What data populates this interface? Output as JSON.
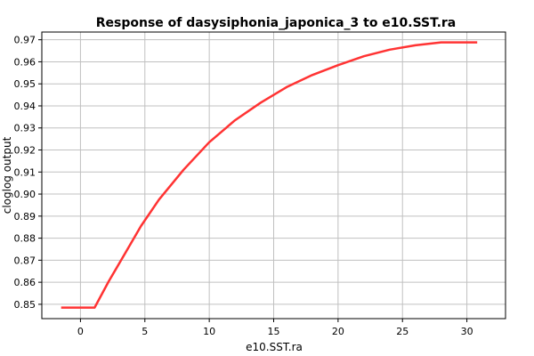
{
  "chart_data": {
    "type": "line",
    "title": "Response of dasysiphonia_japonica_3 to e10.SST.ra",
    "xlabel": "e10.SST.ra",
    "ylabel": "cloglog output",
    "xlim": [
      -3,
      33
    ],
    "ylim": [
      0.8435,
      0.9735
    ],
    "x_ticks": [
      0,
      5,
      10,
      15,
      20,
      25,
      30
    ],
    "y_ticks": [
      0.85,
      0.86,
      0.87,
      0.88,
      0.89,
      0.9,
      0.91,
      0.92,
      0.93,
      0.94,
      0.95,
      0.96,
      0.97
    ],
    "x_tick_labels": [
      "0",
      "5",
      "10",
      "15",
      "20",
      "25",
      "30"
    ],
    "y_tick_labels": [
      "0.85",
      "0.86",
      "0.87",
      "0.88",
      "0.89",
      "0.90",
      "0.91",
      "0.92",
      "0.93",
      "0.94",
      "0.95",
      "0.96",
      "0.97"
    ],
    "grid": true,
    "series": [
      {
        "color": "#ff3333",
        "x": [
          -1.5,
          1.1,
          2.2,
          3.5,
          4.7,
          6.1,
          8.0,
          10.0,
          12.0,
          14.0,
          16.0,
          18.0,
          20.0,
          22.0,
          24.0,
          26.0,
          28.0,
          30.8
        ],
        "y": [
          0.8485,
          0.8485,
          0.8605,
          0.8735,
          0.8855,
          0.8975,
          0.911,
          0.9235,
          0.9335,
          0.9415,
          0.9485,
          0.954,
          0.9585,
          0.9625,
          0.9655,
          0.9675,
          0.9688,
          0.9688
        ]
      }
    ]
  }
}
